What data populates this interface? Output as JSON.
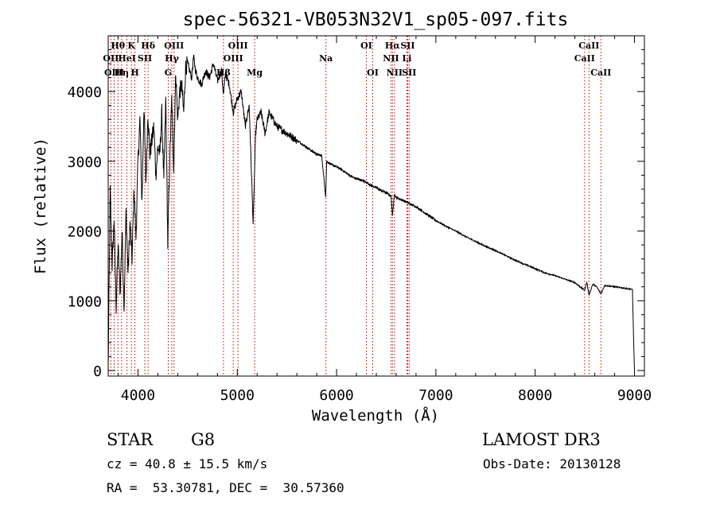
{
  "chart_data": {
    "type": "line",
    "title": "spec-56321-VB053N32V1_sp05-097.fits",
    "xlabel": "Wavelength (Å)",
    "ylabel": "Flux (relative)",
    "xlim": [
      3700,
      9100
    ],
    "ylim": [
      -80,
      4800
    ],
    "xticks": [
      4000,
      5000,
      6000,
      7000,
      8000,
      9000
    ],
    "yticks": [
      0,
      1000,
      2000,
      3000,
      4000
    ],
    "series": [
      {
        "name": "flux",
        "x": [
          3700,
          3720,
          3740,
          3760,
          3780,
          3800,
          3820,
          3840,
          3860,
          3880,
          3900,
          3920,
          3940,
          3960,
          3980,
          4000,
          4020,
          4040,
          4060,
          4080,
          4100,
          4120,
          4140,
          4160,
          4180,
          4200,
          4220,
          4240,
          4260,
          4280,
          4300,
          4320,
          4340,
          4360,
          4380,
          4400,
          4420,
          4440,
          4460,
          4480,
          4500,
          4520,
          4540,
          4560,
          4580,
          4600,
          4640,
          4680,
          4720,
          4760,
          4800,
          4840,
          4861,
          4880,
          4920,
          4960,
          5000,
          5040,
          5080,
          5120,
          5160,
          5175,
          5185,
          5200,
          5240,
          5280,
          5320,
          5360,
          5400,
          5450,
          5500,
          5550,
          5600,
          5650,
          5700,
          5750,
          5800,
          5850,
          5890,
          5900,
          5950,
          6000,
          6050,
          6100,
          6150,
          6200,
          6250,
          6300,
          6350,
          6400,
          6450,
          6500,
          6550,
          6563,
          6580,
          6600,
          6650,
          6700,
          6750,
          6800,
          6900,
          7000,
          7100,
          7200,
          7300,
          7400,
          7500,
          7600,
          7700,
          7800,
          7900,
          8000,
          8100,
          8200,
          8300,
          8400,
          8498,
          8520,
          8542,
          8580,
          8620,
          8662,
          8700,
          8800,
          8900,
          8980,
          8990,
          9000
        ],
        "y": [
          0,
          2600,
          1500,
          2200,
          900,
          1800,
          1100,
          2000,
          900,
          2300,
          1400,
          2100,
          1600,
          2600,
          1900,
          3000,
          3600,
          2400,
          3800,
          2700,
          3700,
          3100,
          3300,
          3500,
          2800,
          3200,
          3100,
          3700,
          2700,
          3900,
          1800,
          3000,
          3900,
          2900,
          4300,
          3600,
          4000,
          4100,
          3700,
          4350,
          4400,
          4300,
          4200,
          4500,
          4300,
          4200,
          4100,
          4300,
          4200,
          4400,
          4150,
          4300,
          3950,
          4250,
          4100,
          3700,
          3900,
          4000,
          3500,
          3800,
          2100,
          2900,
          3400,
          3600,
          3700,
          3400,
          3700,
          3600,
          3500,
          3450,
          3400,
          3350,
          3300,
          3250,
          3200,
          3150,
          3100,
          3080,
          2500,
          3000,
          2950,
          2920,
          2880,
          2830,
          2780,
          2750,
          2730,
          2700,
          2650,
          2620,
          2580,
          2550,
          2500,
          2200,
          2530,
          2480,
          2450,
          2420,
          2380,
          2350,
          2250,
          2150,
          2070,
          2000,
          1920,
          1850,
          1780,
          1720,
          1650,
          1580,
          1520,
          1460,
          1400,
          1360,
          1310,
          1260,
          1150,
          1270,
          1080,
          1240,
          1200,
          1100,
          1220,
          1200,
          1180,
          1160,
          500,
          0
        ]
      }
    ],
    "lines": [
      {
        "label": "Hθ",
        "wave": 3798,
        "row": 1
      },
      {
        "label": "OII",
        "wave": 3727,
        "row": 2
      },
      {
        "label": "OIII",
        "wave": 3760,
        "row": 3
      },
      {
        "label": "Hη",
        "wave": 3835,
        "row": 3
      },
      {
        "label": "HeI",
        "wave": 3889,
        "row": 2
      },
      {
        "label": "K",
        "wave": 3934,
        "row": 1
      },
      {
        "label": "SII",
        "wave": 4069,
        "row": 2
      },
      {
        "label": "H",
        "wave": 3969,
        "row": 3
      },
      {
        "label": "Hδ",
        "wave": 4102,
        "row": 1
      },
      {
        "label": "OIII",
        "wave": 4363,
        "row": 1
      },
      {
        "label": "Hγ",
        "wave": 4341,
        "row": 2
      },
      {
        "label": "G",
        "wave": 4305,
        "row": 3
      },
      {
        "label": "Hβ",
        "wave": 4861,
        "row": 3
      },
      {
        "label": "OIII",
        "wave": 4959,
        "row": 2
      },
      {
        "label": "OIII",
        "wave": 5007,
        "row": 1
      },
      {
        "label": "Mg",
        "wave": 5175,
        "row": 3
      },
      {
        "label": "Na",
        "wave": 5893,
        "row": 2
      },
      {
        "label": "OI",
        "wave": 6300,
        "row": 1
      },
      {
        "label": "OI",
        "wave": 6364,
        "row": 3
      },
      {
        "label": "Hα",
        "wave": 6563,
        "row": 1
      },
      {
        "label": "NII",
        "wave": 6548,
        "row": 2
      },
      {
        "label": "NII",
        "wave": 6583,
        "row": 3
      },
      {
        "label": "Li",
        "wave": 6708,
        "row": 2
      },
      {
        "label": "SII",
        "wave": 6716,
        "row": 1
      },
      {
        "label": "SII",
        "wave": 6731,
        "row": 3
      },
      {
        "label": "CaII",
        "wave": 8498,
        "row": 2
      },
      {
        "label": "CaII",
        "wave": 8542,
        "row": 1
      },
      {
        "label": "CaII",
        "wave": 8662,
        "row": 3
      }
    ]
  },
  "info": {
    "object_class": "STAR",
    "subclass": "G8",
    "survey": "LAMOST DR3",
    "cz": "cz = 40.8 ± 15.5 km/s",
    "obs_date": "Obs-Date: 20130128",
    "coords": "RA =  53.30781, DEC =  30.57360"
  },
  "colors": {
    "spectrum": "#000000",
    "line_marker": "#cc0000",
    "axis": "#000000"
  }
}
